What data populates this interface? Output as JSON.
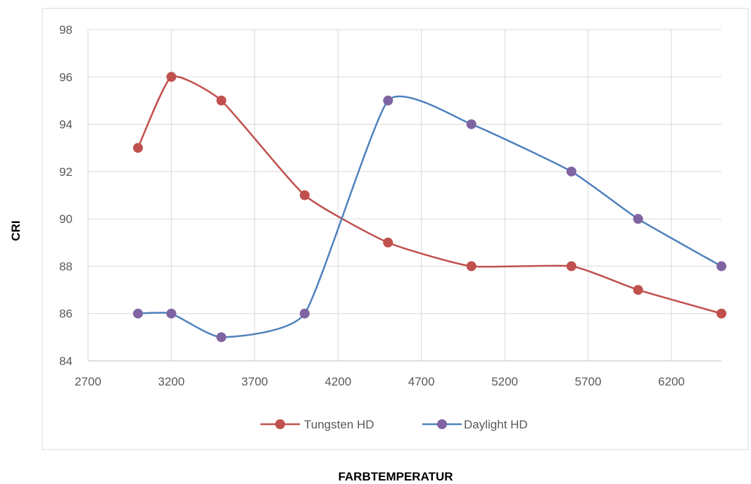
{
  "chart_data": {
    "type": "line",
    "title": "",
    "xlabel": "FARBTEMPERATUR",
    "ylabel": "CRI",
    "xlim": [
      2700,
      6500
    ],
    "ylim": [
      84,
      98
    ],
    "x_ticks": [
      "2700",
      "3200",
      "3700",
      "4200",
      "4700",
      "5200",
      "5700",
      "6200"
    ],
    "y_ticks": [
      "84",
      "86",
      "88",
      "90",
      "92",
      "94",
      "96",
      "98"
    ],
    "grid": true,
    "smooth": true,
    "legend_position": "bottom",
    "series": [
      {
        "name": "Tungsten HD",
        "color": "#c0504d",
        "marker_color": "#c0504d",
        "x": [
          3000,
          3200,
          3500,
          4000,
          4500,
          5000,
          5600,
          6000,
          6500
        ],
        "y": [
          93,
          96,
          95,
          91,
          89,
          88,
          88,
          87,
          86
        ]
      },
      {
        "name": "Daylight HD",
        "color": "#4f81bd",
        "marker_color": "#8064a2",
        "x": [
          3000,
          3200,
          3500,
          4000,
          4500,
          5000,
          5600,
          6000,
          6500
        ],
        "y": [
          86,
          86,
          85,
          86,
          95,
          94,
          92,
          90,
          88
        ]
      }
    ]
  }
}
